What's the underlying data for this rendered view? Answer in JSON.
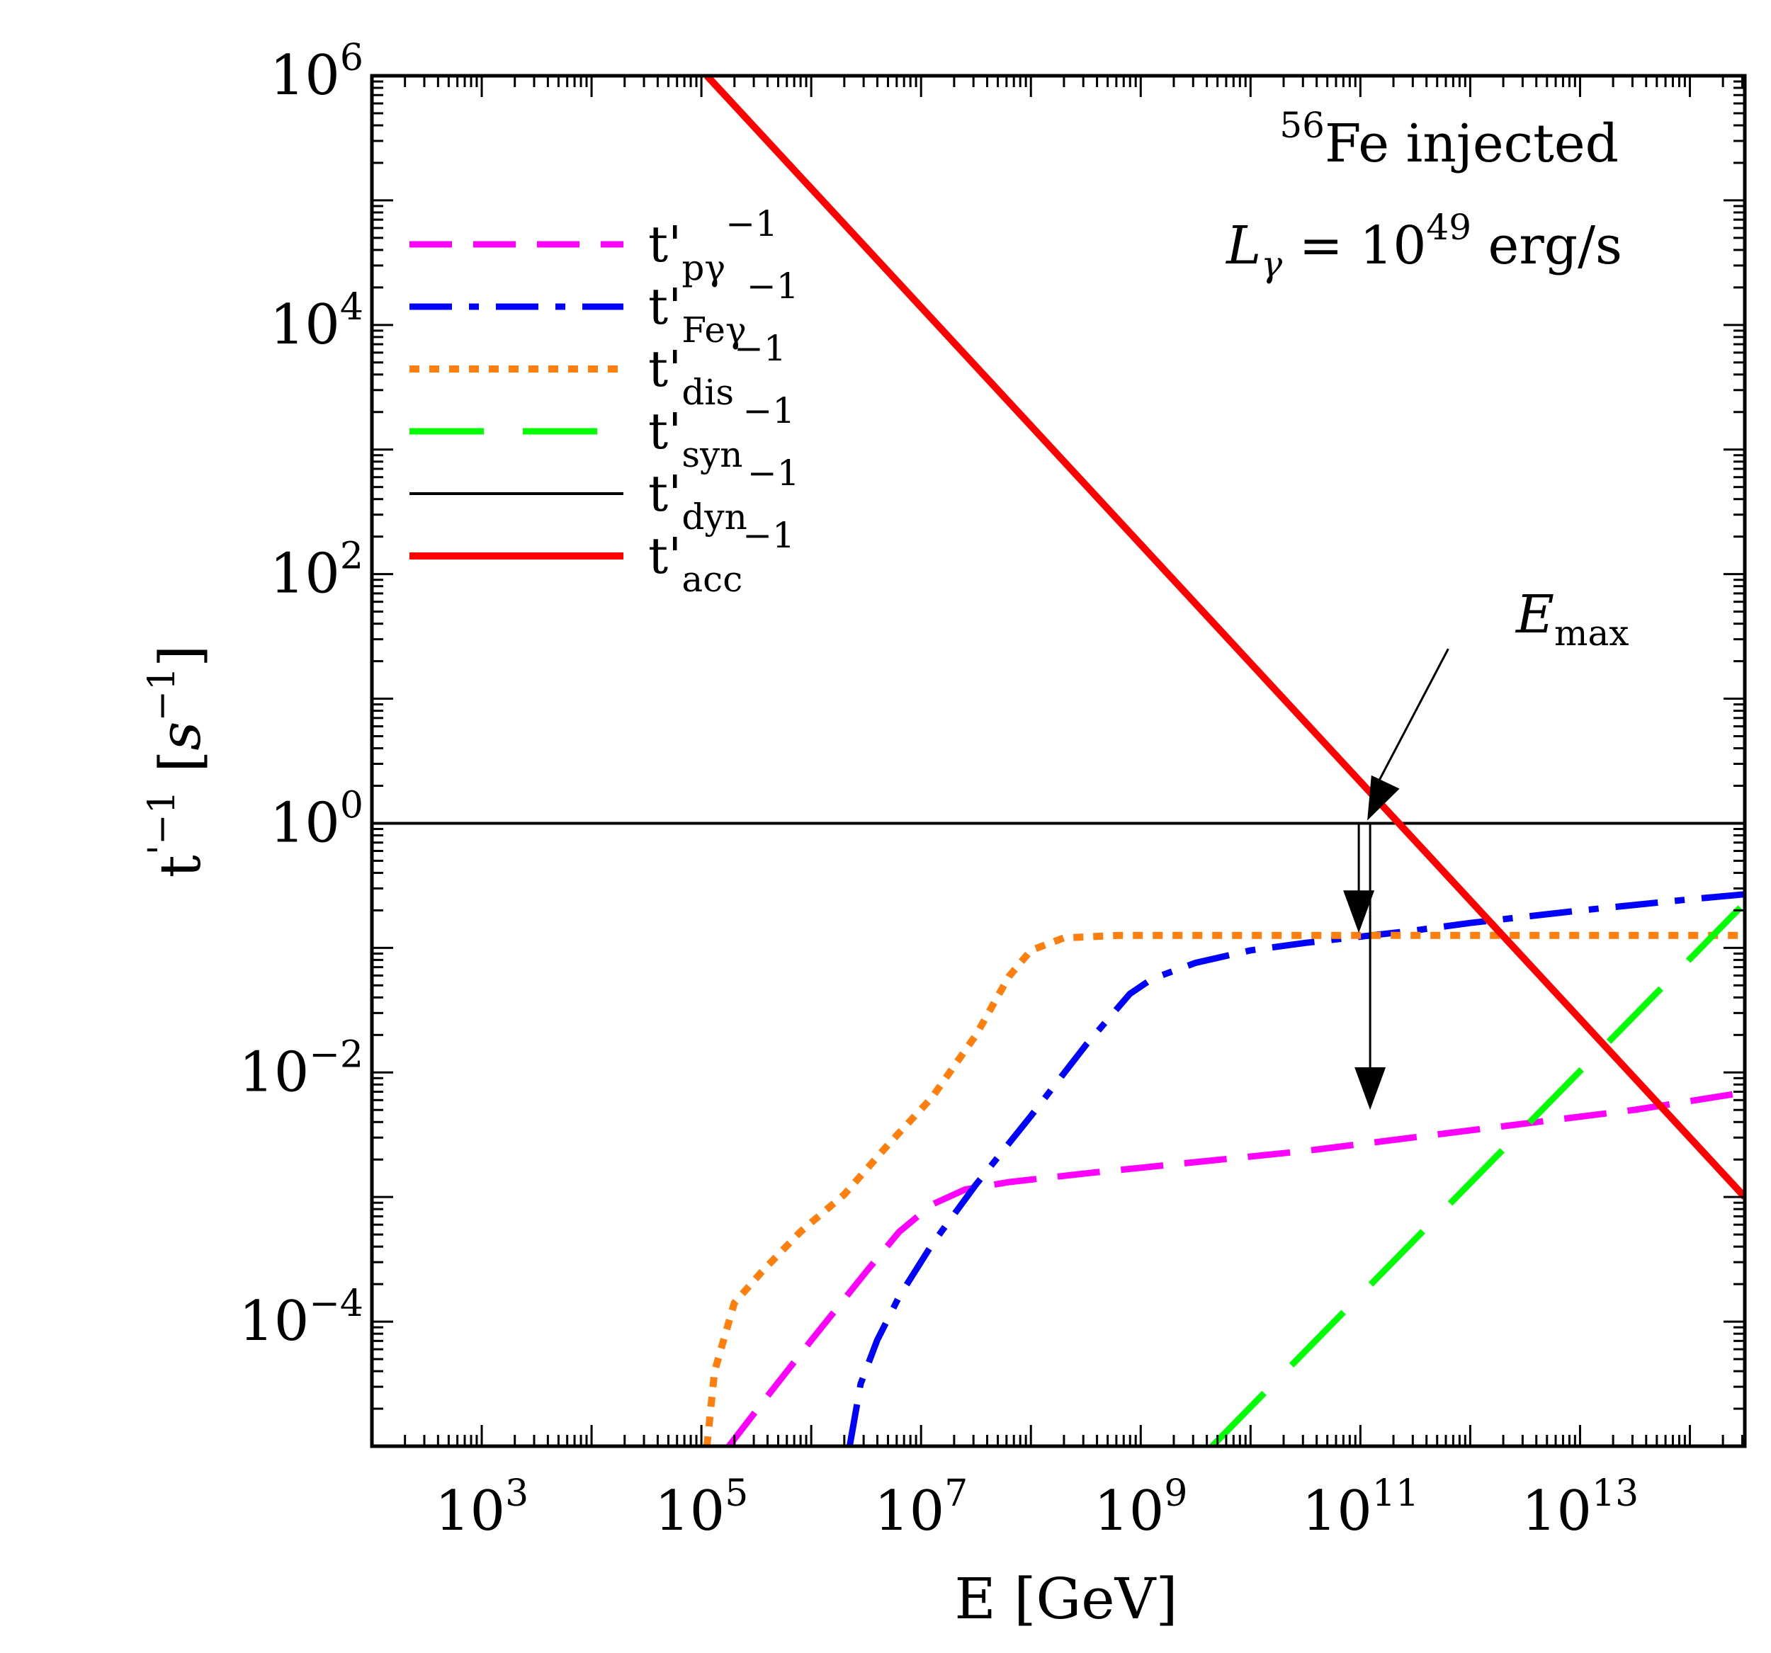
{
  "chart_data": {
    "type": "line",
    "xlabel_main": "E",
    "xlabel_unit": "[GeV]",
    "ylabel_main": "t",
    "ylabel_prime": "'",
    "ylabel_exp": "−1",
    "ylabel_unit_open": "[",
    "ylabel_unit_s": "s",
    "ylabel_unit_exp": "−1",
    "ylabel_unit_close": "]",
    "x_log_range": [
      2,
      14.5
    ],
    "y_log_range": [
      -5,
      6
    ],
    "x_ticks": [
      {
        "base": "10",
        "exp": "3",
        "log": 3
      },
      {
        "base": "10",
        "exp": "5",
        "log": 5
      },
      {
        "base": "10",
        "exp": "7",
        "log": 7
      },
      {
        "base": "10",
        "exp": "9",
        "log": 9
      },
      {
        "base": "10",
        "exp": "11",
        "log": 11
      },
      {
        "base": "10",
        "exp": "13",
        "log": 13
      }
    ],
    "y_ticks": [
      {
        "base": "10",
        "exp": "6",
        "log": 6
      },
      {
        "base": "10",
        "exp": "4",
        "log": 4
      },
      {
        "base": "10",
        "exp": "2",
        "log": 2
      },
      {
        "base": "10",
        "exp": "0",
        "log": 0
      },
      {
        "base": "10",
        "exp": "−2",
        "log": -2
      },
      {
        "base": "10",
        "exp": "−4",
        "log": -4
      }
    ],
    "series": [
      {
        "id": "pgamma",
        "label_main": "t'",
        "label_sub": "pγ",
        "label_sup": "−1",
        "color": "#ff00ff",
        "dash": "60 30",
        "width": 9,
        "points": [
          [
            5.25,
            -5
          ],
          [
            5.6,
            -4.6
          ],
          [
            6.0,
            -4.15
          ],
          [
            6.5,
            -3.6
          ],
          [
            6.8,
            -3.28
          ],
          [
            7.1,
            -3.06
          ],
          [
            7.4,
            -2.94
          ],
          [
            7.8,
            -2.88
          ],
          [
            8.5,
            -2.81
          ],
          [
            9.5,
            -2.72
          ],
          [
            10.5,
            -2.63
          ],
          [
            11.5,
            -2.52
          ],
          [
            12.5,
            -2.41
          ],
          [
            13.5,
            -2.3
          ],
          [
            14.5,
            -2.16
          ]
        ]
      },
      {
        "id": "fegamma",
        "label_main": "t'",
        "label_sub": "Feγ",
        "label_sup": "−1",
        "color": "#0000ff",
        "dash": "60 24 14 24",
        "width": 9,
        "points": [
          [
            6.35,
            -5
          ],
          [
            6.45,
            -4.5
          ],
          [
            6.6,
            -4.15
          ],
          [
            6.8,
            -3.8
          ],
          [
            7.1,
            -3.38
          ],
          [
            7.5,
            -2.9
          ],
          [
            8.0,
            -2.35
          ],
          [
            8.5,
            -1.78
          ],
          [
            8.9,
            -1.37
          ],
          [
            9.1,
            -1.25
          ],
          [
            9.5,
            -1.12
          ],
          [
            10.0,
            -1.02
          ],
          [
            10.5,
            -0.96
          ],
          [
            11.0,
            -0.91
          ],
          [
            11.5,
            -0.86
          ],
          [
            12.0,
            -0.8
          ],
          [
            13.0,
            -0.7
          ],
          [
            14.0,
            -0.61
          ],
          [
            14.5,
            -0.57
          ]
        ]
      },
      {
        "id": "dis",
        "label_main": "t'",
        "label_sub": "dis",
        "label_sup": "−1",
        "color": "#ff7f0e",
        "dash": "14 14",
        "width": 10,
        "points": [
          [
            5.05,
            -5
          ],
          [
            5.12,
            -4.4
          ],
          [
            5.3,
            -3.85
          ],
          [
            5.55,
            -3.6
          ],
          [
            5.9,
            -3.28
          ],
          [
            6.3,
            -2.98
          ],
          [
            6.7,
            -2.58
          ],
          [
            7.1,
            -2.2
          ],
          [
            7.5,
            -1.7
          ],
          [
            7.8,
            -1.23
          ],
          [
            8.0,
            -1.02
          ],
          [
            8.3,
            -0.92
          ],
          [
            8.8,
            -0.9
          ],
          [
            14.5,
            -0.9
          ]
        ]
      },
      {
        "id": "syn",
        "label_main": "t'",
        "label_sub": "syn",
        "label_sup": "−1",
        "color": "#00ff00",
        "dash": "105 55",
        "width": 9,
        "points": [
          [
            9.65,
            -5
          ],
          [
            14.5,
            -0.64
          ]
        ]
      },
      {
        "id": "dyn",
        "label_main": "t'",
        "label_sub": "dyn",
        "label_sup": "−1",
        "color": "#000000",
        "dash": "",
        "width": 4,
        "points": [
          [
            2,
            0
          ],
          [
            14.5,
            0
          ]
        ]
      },
      {
        "id": "acc",
        "label_main": "t'",
        "label_sub": "acc",
        "label_sup": "−1",
        "color": "#ff0000",
        "dash": "",
        "width": 10,
        "points": [
          [
            5.05,
            6
          ],
          [
            14.5,
            -3.0
          ]
        ]
      }
    ],
    "annotation_species_sup": "56",
    "annotation_species": "Fe injected",
    "annotation_lum_symbol": "L",
    "annotation_lum_sub": "γ",
    "annotation_lum_eq": " = 10",
    "annotation_lum_sup": "49",
    "annotation_lum_unit": " erg/s",
    "annotation_emax_symbol": "E",
    "annotation_emax_sub": "max",
    "emax_point": [
      11.05,
      0
    ],
    "emax_label_anchor": [
      11.8,
      1.4
    ],
    "arrow_fe_end": -0.88,
    "arrow_pg_end": -2.3
  }
}
